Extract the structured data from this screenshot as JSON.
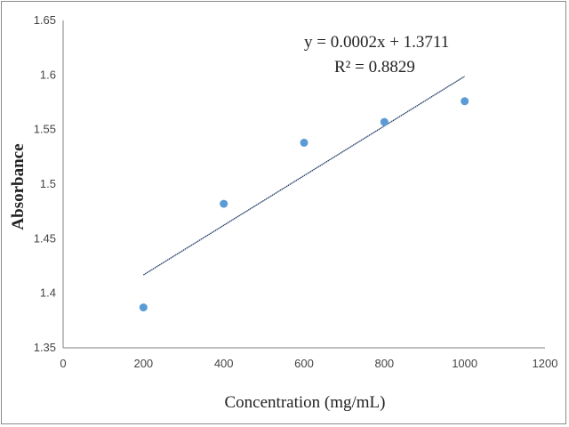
{
  "chart_data": {
    "type": "scatter",
    "title": "",
    "xlabel": "Concentration (mg/mL)",
    "ylabel": "Absorbance",
    "xlim": [
      0,
      1200
    ],
    "ylim": [
      1.35,
      1.65
    ],
    "x_ticks": [
      "0",
      "200",
      "400",
      "600",
      "800",
      "1000",
      "1200"
    ],
    "y_ticks": [
      "1.35",
      "1.4",
      "1.45",
      "1.5",
      "1.55",
      "1.6",
      "1.65"
    ],
    "grid": false,
    "legend": "none",
    "series": [
      {
        "x": [
          200,
          400,
          600,
          800,
          1000
        ],
        "y": [
          1.387,
          1.482,
          1.538,
          1.557,
          1.576
        ],
        "color": "#5b9bd5"
      }
    ],
    "trendline": {
      "type": "linear",
      "slope": 0.0002,
      "intercept": 1.3711,
      "x_range": [
        200,
        1000
      ],
      "color": "#1f3864",
      "equation": "y = 0.0002x + 1.3711",
      "r_squared": "R² = 0.8829"
    }
  }
}
